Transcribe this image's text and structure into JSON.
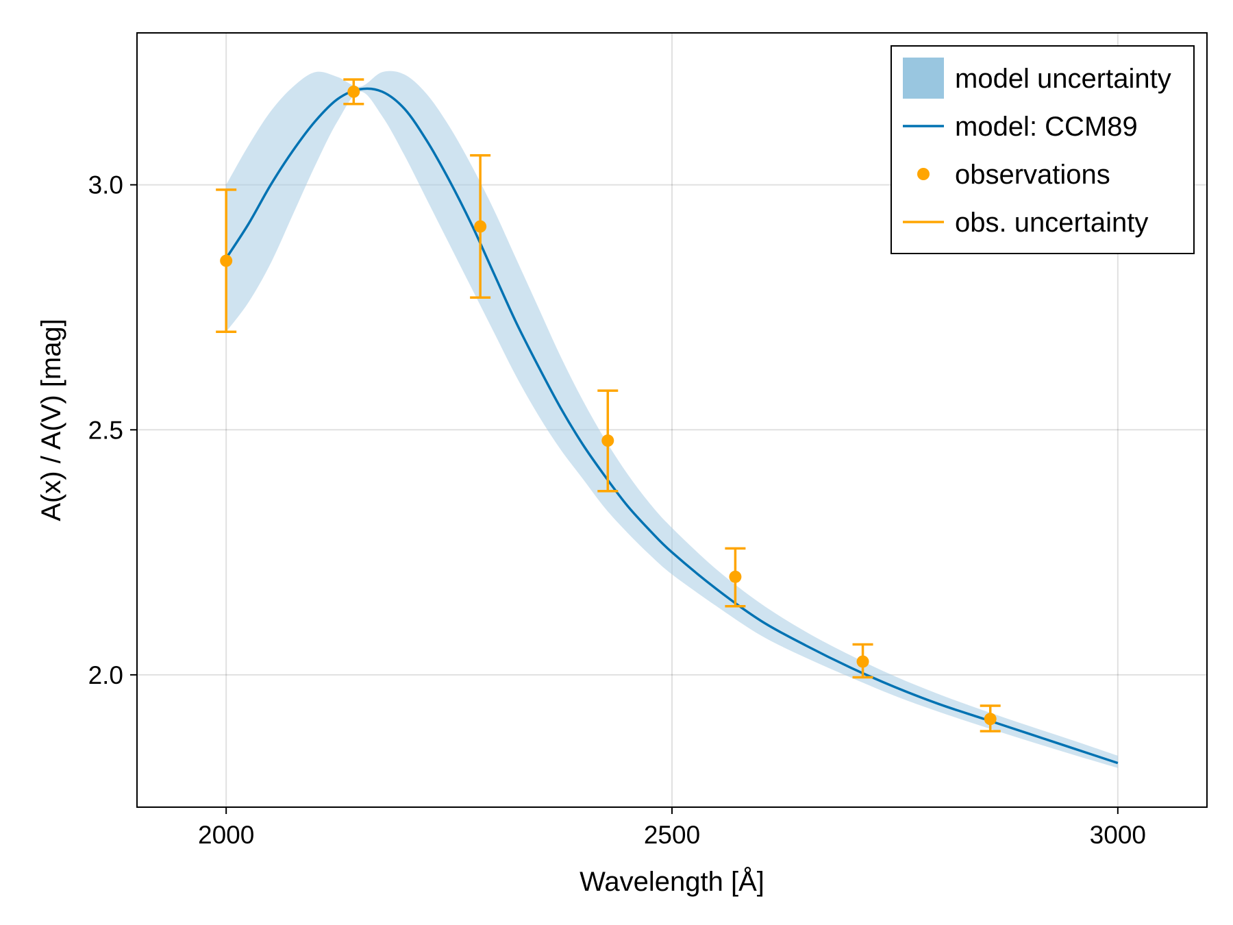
{
  "chart_data": {
    "type": "line",
    "title": "",
    "xlabel": "Wavelength [Å]",
    "ylabel": "A(x) / A(V) [mag]",
    "xlim": [
      1900,
      3100
    ],
    "ylim": [
      1.73,
      3.31
    ],
    "xticks": [
      2000,
      2500,
      3000
    ],
    "xtick_labels": [
      "2000",
      "2500",
      "3000"
    ],
    "yticks": [
      2.0,
      2.5,
      3.0
    ],
    "ytick_labels": [
      "2.0",
      "2.5",
      "3.0"
    ],
    "grid": true,
    "legend_position": "top-right",
    "colors": {
      "model": "#0072b2",
      "band": "#a7cce4",
      "observations": "#ffa500"
    },
    "model_curve": {
      "name": "model: CCM89",
      "x": [
        2000,
        2025,
        2050,
        2075,
        2100,
        2125,
        2150,
        2175,
        2200,
        2225,
        2250,
        2275,
        2300,
        2325,
        2350,
        2375,
        2400,
        2425,
        2450,
        2475,
        2500,
        2550,
        2600,
        2650,
        2700,
        2750,
        2800,
        2850,
        2900,
        2950,
        3000
      ],
      "y": [
        2.85,
        2.92,
        3.0,
        3.07,
        3.13,
        3.175,
        3.195,
        3.19,
        3.155,
        3.09,
        3.01,
        2.92,
        2.82,
        2.72,
        2.63,
        2.545,
        2.47,
        2.405,
        2.345,
        2.295,
        2.25,
        2.175,
        2.11,
        2.06,
        2.015,
        1.975,
        1.94,
        1.91,
        1.88,
        1.85,
        1.82
      ]
    },
    "model_band": {
      "name": "model uncertainty",
      "x": [
        2000,
        2025,
        2050,
        2075,
        2100,
        2125,
        2150,
        2175,
        2200,
        2225,
        2250,
        2275,
        2300,
        2325,
        2350,
        2375,
        2400,
        2425,
        2450,
        2475,
        2500,
        2550,
        2600,
        2650,
        2700,
        2750,
        2800,
        2850,
        2900,
        2950,
        3000
      ],
      "lower": [
        2.7,
        2.76,
        2.84,
        2.94,
        3.04,
        3.13,
        3.19,
        3.14,
        3.06,
        2.97,
        2.88,
        2.79,
        2.7,
        2.61,
        2.53,
        2.46,
        2.4,
        2.34,
        2.29,
        2.245,
        2.205,
        2.14,
        2.08,
        2.035,
        1.995,
        1.957,
        1.924,
        1.894,
        1.865,
        1.837,
        1.81
      ],
      "upper": [
        3.0,
        3.08,
        3.15,
        3.2,
        3.23,
        3.22,
        3.2,
        3.23,
        3.225,
        3.185,
        3.12,
        3.04,
        2.95,
        2.85,
        2.75,
        2.65,
        2.56,
        2.48,
        2.41,
        2.35,
        2.3,
        2.215,
        2.145,
        2.088,
        2.04,
        1.997,
        1.96,
        1.927,
        1.896,
        1.866,
        1.835
      ]
    },
    "observations": {
      "name": "observations",
      "x": [
        2000,
        2143,
        2285,
        2428,
        2571,
        2714,
        2857
      ],
      "y": [
        2.845,
        3.19,
        2.915,
        2.478,
        2.2,
        2.027,
        1.91
      ]
    },
    "obs_uncertainty": {
      "name": "obs. uncertainty",
      "lower": [
        2.7,
        3.165,
        2.77,
        2.375,
        2.14,
        1.995,
        1.885
      ],
      "upper": [
        2.99,
        3.215,
        3.06,
        2.58,
        2.258,
        2.062,
        1.937
      ]
    },
    "legend": {
      "entries": [
        "model uncertainty",
        "model: CCM89",
        "observations",
        "obs. uncertainty"
      ]
    }
  }
}
